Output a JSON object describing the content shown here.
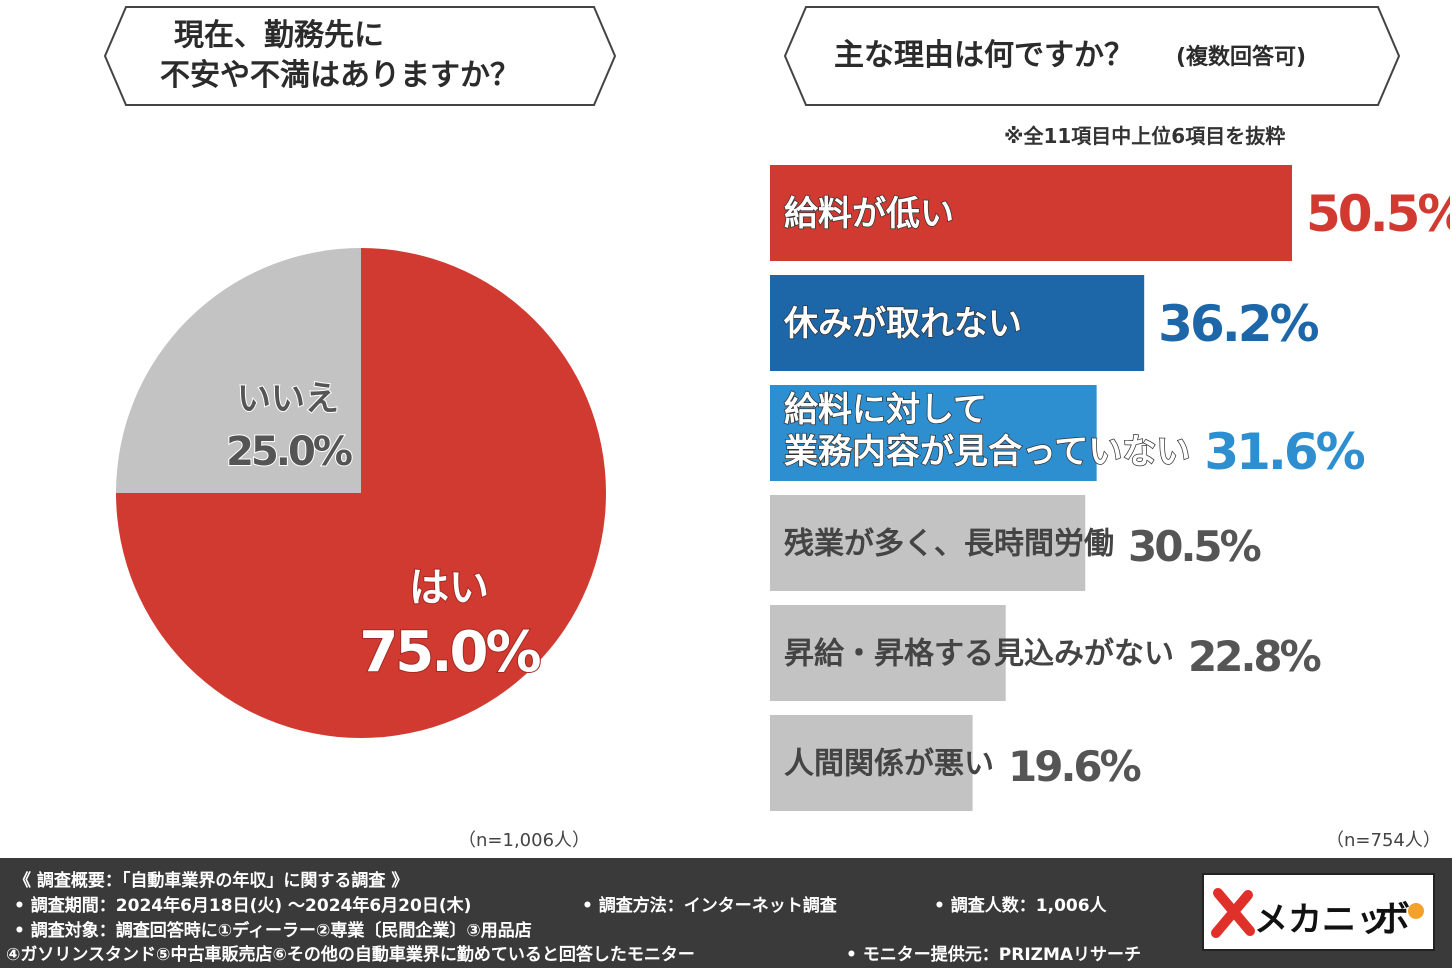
{
  "left_question": {
    "line1": "現在、勤務先に",
    "line2": "不安や不満はありますか？"
  },
  "right_question": {
    "main": "主な理由は何ですか？",
    "sub": "(複数回答可)"
  },
  "note": "※全11項目中上位6項目を抜粋",
  "left_n": "（n=1,006人）",
  "right_n": "（n=754人）",
  "colors": {
    "red": "#d13a30",
    "gray": "#c3c3c3",
    "blue_dark": "#1d66a8",
    "blue_light": "#2d8fcf",
    "footer_bg": "#3a3a3a"
  },
  "chart_data": [
    {
      "type": "pie",
      "title": "現在、勤務先に不安や不満はありますか？",
      "slices": [
        {
          "label": "はい",
          "value": 75.0,
          "value_label": "75.0%",
          "color": "#d13a30"
        },
        {
          "label": "いいえ",
          "value": 25.0,
          "value_label": "25.0%",
          "color": "#c3c3c3"
        }
      ]
    },
    {
      "type": "bar",
      "orientation": "horizontal",
      "title": "主な理由は何ですか？(複数回答可)",
      "categories": [
        "給料が低い",
        "休みが取れない",
        "給料に対して業務内容が見合っていない",
        "残業が多く、長時間労働",
        "昇給・昇格する見込みがない",
        "人間関係が悪い"
      ],
      "category_lines": [
        [
          "給料が低い"
        ],
        [
          "休みが取れない"
        ],
        [
          "給料に対して",
          "業務内容が見合っていない"
        ],
        [
          "残業が多く、長時間労働"
        ],
        [
          "昇給・昇格する見込みがない"
        ],
        [
          "人間関係が悪い"
        ]
      ],
      "values": [
        50.5,
        36.2,
        31.6,
        30.5,
        22.8,
        19.6
      ],
      "value_labels": [
        "50.5%",
        "36.2%",
        "31.6%",
        "30.5%",
        "22.8%",
        "19.6%"
      ],
      "colors": [
        "#d13a30",
        "#1d66a8",
        "#2d8fcf",
        "#c3c3c3",
        "#c3c3c3",
        "#c3c3c3"
      ],
      "xlim": [
        0,
        50.5
      ]
    }
  ],
  "footer": {
    "line1": "《 調査概要：「自動車業界の年収」に関する調査 》",
    "period": "• 調査期間：2024年6月18日(火) ～2024年6月20日(木)",
    "method": "• 調査方法：インターネット調査",
    "count": "• 調査人数：1,006人",
    "target": "• 調査対象：調査回答時に①ディーラー②専業〔民間企業〕③用品店",
    "target2": "④ガソリンスタンド⑤中古車販売店⑥その他の自動車業界に勤めていると回答したモニター",
    "provider": "• モニター提供元：PRIZMAリサーチ"
  },
  "logo": {
    "text": "メカニッ",
    "suffix": "ボ"
  }
}
